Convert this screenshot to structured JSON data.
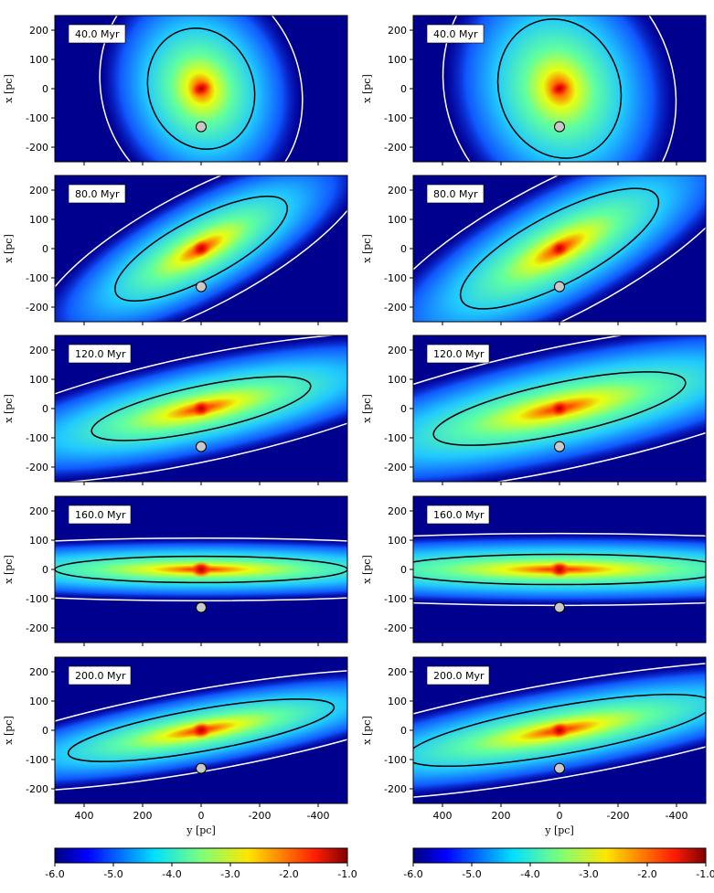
{
  "chart_data": {
    "type": "heatmap",
    "layout": "5 rows x 2 columns",
    "colormap": "jet",
    "xlabel": "y [pc]",
    "ylabel": "x [pc]",
    "xlim": [
      500,
      -500
    ],
    "ylim": [
      -250,
      250
    ],
    "xticks": [
      400,
      200,
      0,
      -200,
      -400
    ],
    "yticks": [
      200,
      100,
      0,
      -100,
      -200
    ],
    "colorbar": {
      "range": [
        -6.0,
        -1.0
      ],
      "ticks": [
        "-6.0",
        "-5.0",
        "-4.0",
        "-3.0",
        "-2.0",
        "-1.0"
      ]
    },
    "marker": {
      "y": 0,
      "x": -130,
      "shape": "circle",
      "color": "#c8c8c8"
    },
    "contours": [
      {
        "color": "#ffffff"
      },
      {
        "color": "#000000"
      }
    ],
    "panels": [
      {
        "time": "40.0 Myr"
      },
      {
        "time": "80.0 Myr"
      },
      {
        "time": "120.0 Myr"
      },
      {
        "time": "160.0 Myr"
      },
      {
        "time": "200.0 Myr"
      }
    ]
  }
}
